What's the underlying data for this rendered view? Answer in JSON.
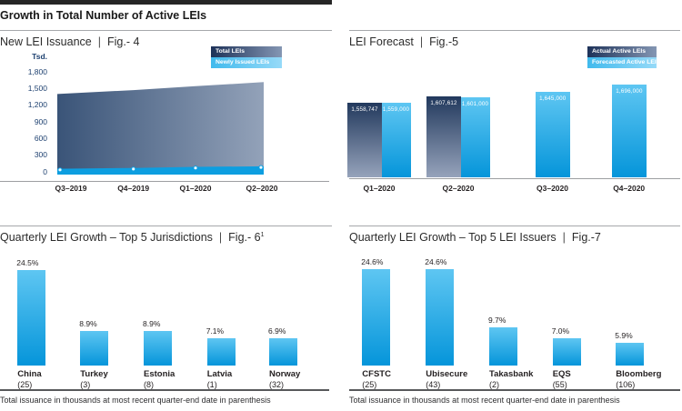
{
  "header": {
    "title": "Growth in Total Number of Active LEIs"
  },
  "footnote": "Total issuance in thousands at most recent quarter-end date in parenthesis",
  "colors": {
    "light_blue_top": "#5ec6f2",
    "light_blue_bottom": "#0595da",
    "dark_blue_top": "#22395d",
    "dark_blue_bottom": "#96a3bb",
    "band_blue": "#0d9ee0",
    "tick_navy": "#1e4170",
    "topbar_black": "#262626"
  },
  "chart_data": [
    {
      "id": "fig4",
      "type": "area",
      "title": "New LEI Issuance",
      "separator": "|",
      "fig_label": "Fig.- 4",
      "legend": [
        {
          "label": "Total LEIs",
          "style": "dark"
        },
        {
          "label": "Newly Issued LEIs",
          "style": "light"
        }
      ],
      "y_axis": {
        "unit": "Tsd.",
        "ticks": [
          {
            "v": 1800,
            "label": "1,800"
          },
          {
            "v": 1500,
            "label": "1,500"
          },
          {
            "v": 1200,
            "label": "1,200"
          },
          {
            "v": 900,
            "label": "900"
          },
          {
            "v": 600,
            "label": "600"
          },
          {
            "v": 300,
            "label": "300"
          },
          {
            "v": 0,
            "label": "0"
          }
        ]
      },
      "ylim": [
        0,
        1800
      ],
      "x": [
        "Q3–2019",
        "Q4–2019",
        "Q1–2020",
        "Q2–2020"
      ],
      "series": [
        {
          "name": "Total LEIs",
          "values": [
            1450,
            1520,
            1590,
            1665
          ]
        },
        {
          "name": "Newly Issued LEIs",
          "values": [
            85,
            100,
            120,
            130
          ]
        }
      ]
    },
    {
      "id": "fig5",
      "type": "bar",
      "title": "LEI Forecast",
      "separator": "|",
      "fig_label": "Fig.-5",
      "legend": [
        {
          "label": "Actual Active LEIs",
          "style": "dark"
        },
        {
          "label": "Forecasted Active LEIs",
          "style": "light"
        }
      ],
      "categories": [
        "Q1–2020",
        "Q2–2020",
        "Q3–2020",
        "Q4–2020"
      ],
      "series": [
        {
          "name": "Actual Active LEIs",
          "values": [
            1558747,
            1607612,
            null,
            null
          ],
          "labels": [
            "1,558,747",
            "1,607,612",
            null,
            null
          ]
        },
        {
          "name": "Forecasted Active LEIs",
          "values": [
            1559000,
            1601000,
            1645000,
            1696000
          ],
          "labels": [
            "1,559,000",
            "1,601,000",
            "1,645,000",
            "1,696,000"
          ]
        }
      ]
    },
    {
      "id": "fig6",
      "type": "bar",
      "title": "Quarterly LEI Growth – Top 5 Jurisdictions",
      "separator": "|",
      "fig_label": "Fig.- 6",
      "fig_sup": "1",
      "categories": [
        "China",
        "Turkey",
        "Estonia",
        "Latvia",
        "Norway"
      ],
      "counts": [
        "(25)",
        "(3)",
        "(8)",
        "(1)",
        "(32)"
      ],
      "values": [
        24.5,
        8.9,
        8.9,
        7.1,
        6.9
      ],
      "labels": [
        "24.5%",
        "8.9%",
        "8.9%",
        "7.1%",
        "6.9%"
      ]
    },
    {
      "id": "fig7",
      "type": "bar",
      "title": "Quarterly LEI Growth – Top 5 LEI Issuers",
      "separator": "|",
      "fig_label": "Fig.-7",
      "categories": [
        "CFSTC",
        "Ubisecure",
        "Takasbank",
        "EQS",
        "Bloomberg"
      ],
      "counts": [
        "(25)",
        "(43)",
        "(2)",
        "(55)",
        "(106)"
      ],
      "values": [
        24.6,
        24.6,
        9.7,
        7.0,
        5.9
      ],
      "labels": [
        "24.6%",
        "24.6%",
        "9.7%",
        "7.0%",
        "5.9%"
      ]
    }
  ]
}
